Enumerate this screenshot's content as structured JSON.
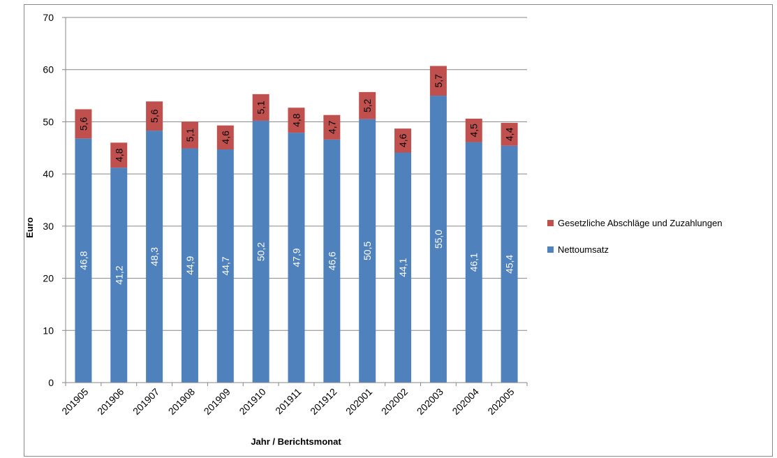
{
  "chart_data": {
    "type": "bar",
    "stacked": true,
    "categories": [
      "201905",
      "201906",
      "201907",
      "201908",
      "201909",
      "201910",
      "201911",
      "201912",
      "202001",
      "202002",
      "202003",
      "202004",
      "202005"
    ],
    "series": [
      {
        "name": "Nettoumsatz",
        "color": "#4f81bd",
        "values": [
          46.8,
          41.2,
          48.3,
          44.9,
          44.7,
          50.2,
          47.9,
          46.6,
          50.5,
          44.1,
          55.0,
          46.1,
          45.4
        ],
        "labels": [
          "46,8",
          "41,2",
          "48,3",
          "44,9",
          "44,7",
          "50,2",
          "47,9",
          "46,6",
          "50,5",
          "44,1",
          "55,0",
          "46,1",
          "45,4"
        ]
      },
      {
        "name": "Gesetzliche Abschläge und Zuzahlungen",
        "color": "#c0504d",
        "values": [
          5.6,
          4.8,
          5.6,
          5.1,
          4.6,
          5.1,
          4.8,
          4.7,
          5.2,
          4.6,
          5.7,
          4.5,
          4.4
        ],
        "labels": [
          "5,6",
          "4,8",
          "5,6",
          "5,1",
          "4,6",
          "5,1",
          "4,8",
          "4,7",
          "5,2",
          "4,6",
          "5,7",
          "4,5",
          "4,4"
        ]
      }
    ],
    "xlabel": "Jahr / Berichtsmonat",
    "ylabel": "Euro",
    "ylim": [
      0,
      70
    ],
    "yticks": [
      0,
      10,
      20,
      30,
      40,
      50,
      60,
      70
    ],
    "grid": true,
    "legend_position": "right"
  }
}
